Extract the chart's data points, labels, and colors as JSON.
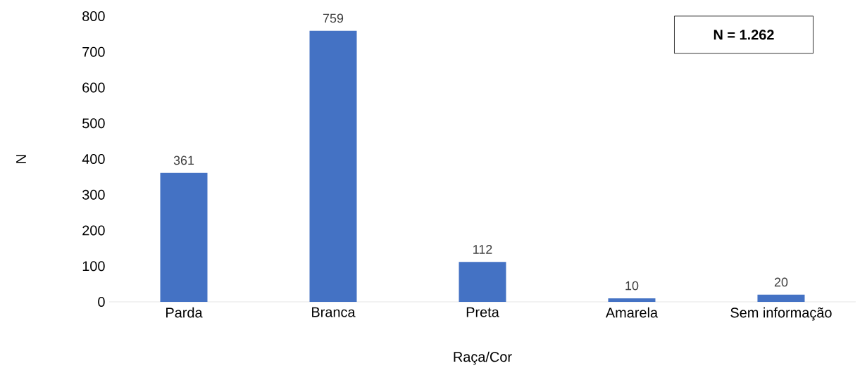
{
  "chart_data": {
    "type": "bar",
    "xlabel": "Raça/Cor",
    "ylabel": "N",
    "categories": [
      "Parda",
      "Branca",
      "Preta",
      "Amarela",
      "Sem informação"
    ],
    "values": [
      361,
      759,
      112,
      10,
      20
    ],
    "color": "#4472c4",
    "ylim": [
      0,
      800
    ],
    "yticks": [
      0,
      100,
      200,
      300,
      400,
      500,
      600,
      700,
      800
    ],
    "data_labels": true,
    "annotations": [
      "N = 1.262"
    ]
  }
}
